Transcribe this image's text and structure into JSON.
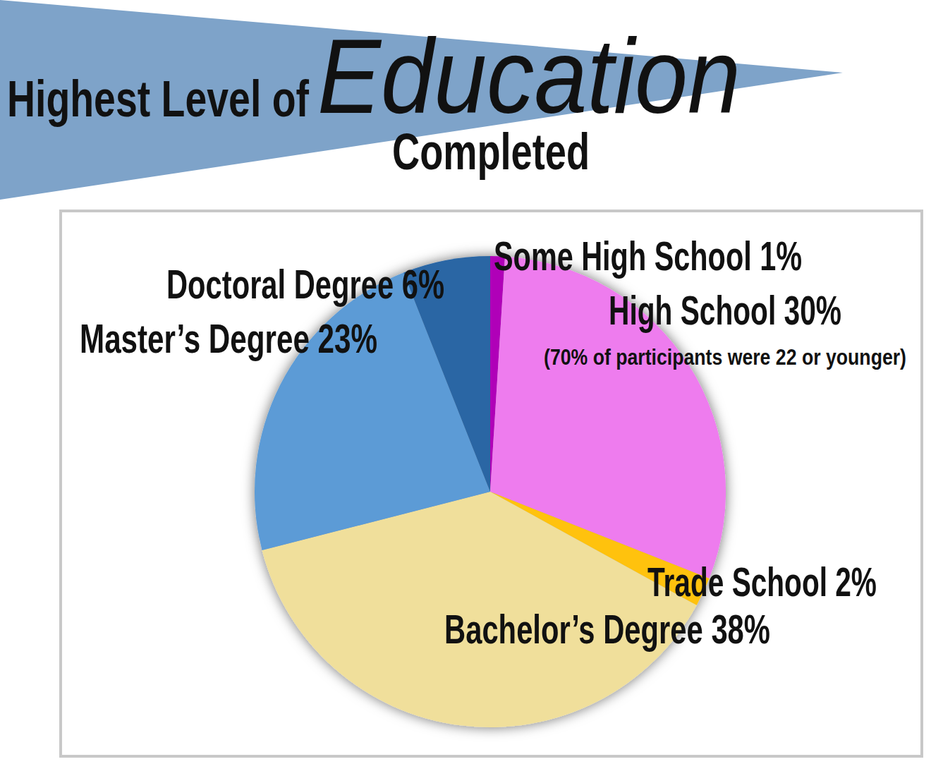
{
  "chart_data": {
    "type": "pie",
    "title": "Highest Level of Education Completed",
    "categories": [
      "Some High School",
      "High School",
      "Trade School",
      "Bachelor’s Degree",
      "Master’s Degree",
      "Doctoral Degree"
    ],
    "values": [
      1,
      30,
      2,
      38,
      23,
      6
    ],
    "value_labels": [
      "1%",
      "30%",
      "2%",
      "38%",
      "23%",
      "6%"
    ],
    "colors": [
      "#b000b8",
      "#ee7bee",
      "#ffc20f",
      "#f0df9b",
      "#5b9bd6",
      "#2a66a4"
    ],
    "data_labels": true,
    "annotation": "(70% of participants were 22 or younger)"
  }
}
